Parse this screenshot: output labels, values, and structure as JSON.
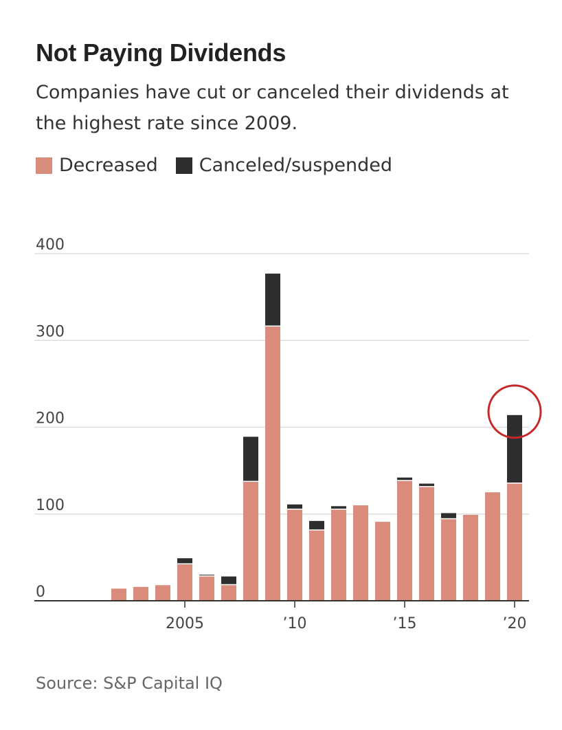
{
  "colors": {
    "decreased": "#d98c7c",
    "canceled": "#2e2e2e",
    "grid": "#dddddd",
    "axis": "#333333",
    "highlight": "#c62828"
  },
  "chart_data": {
    "type": "bar",
    "stacked": true,
    "title": "Not Paying Dividends",
    "subtitle": "Companies have cut or canceled their dividends at the highest rate since 2009.",
    "source": "Source: S&P Capital IQ",
    "x": [
      2002,
      2003,
      2004,
      2005,
      2006,
      2007,
      2008,
      2009,
      2010,
      2011,
      2012,
      2013,
      2014,
      2015,
      2016,
      2017,
      2018,
      2019,
      2020
    ],
    "series": [
      {
        "name": "Decreased",
        "values": [
          14,
          16,
          18,
          42,
          28,
          18,
          137,
          316,
          105,
          81,
          105,
          110,
          91,
          138,
          131,
          94,
          99,
          125,
          135
        ]
      },
      {
        "name": "Canceled/suspended",
        "values": [
          0,
          0,
          0,
          7,
          2,
          10,
          52,
          61,
          6,
          11,
          4,
          0,
          0,
          4,
          4,
          7,
          0,
          0,
          79
        ]
      }
    ],
    "ylim": [
      0,
      400
    ],
    "y_ticks": [
      0,
      100,
      200,
      300,
      400
    ],
    "y_tick_labels": [
      "0",
      "100",
      "200",
      "300",
      "400"
    ],
    "x_ticks": [
      2005,
      2010,
      2015,
      2020
    ],
    "x_tick_labels": [
      "2005",
      "’10",
      "’15",
      "’20"
    ],
    "legend_position": "top-left",
    "grid": true,
    "annotations": [
      {
        "type": "circle",
        "target_x": 2020
      }
    ]
  }
}
